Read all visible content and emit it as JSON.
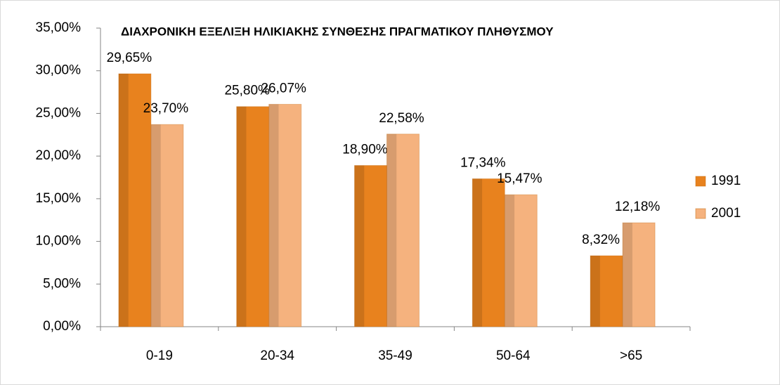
{
  "chart_data": {
    "type": "bar",
    "title": "ΔΙΑΧΡΟΝΙΚΗ ΕΞΕΛΙΞΗ ΗΛΙΚΙΑΚΗΣ ΣΥΝΘΕΣΗΣ ΠΡΑΓΜΑΤΙΚΟΥ ΠΛΗΘΥΣΜΟΥ",
    "categories": [
      "0-19",
      "20-34",
      "35-49",
      "50-64",
      ">65"
    ],
    "series": [
      {
        "name": "1991",
        "color": "#e8821e",
        "values": [
          29.65,
          25.8,
          18.9,
          17.34,
          8.32
        ],
        "value_labels": [
          "29,65%",
          "25,80%",
          "18,90%",
          "17,34%",
          "8,32%"
        ]
      },
      {
        "name": "2001",
        "color": "#f5b27e",
        "values": [
          23.7,
          26.07,
          22.58,
          15.47,
          12.18
        ],
        "value_labels": [
          "23,70%",
          "26,07%",
          "22,58%",
          "15,47%",
          "12,18%"
        ]
      }
    ],
    "ylim": [
      0,
      35
    ],
    "yticks": [
      {
        "value": 0,
        "label": "0,00%"
      },
      {
        "value": 5,
        "label": "5,00%"
      },
      {
        "value": 10,
        "label": "10,00%"
      },
      {
        "value": 15,
        "label": "15,00%"
      },
      {
        "value": 20,
        "label": "20,00%"
      },
      {
        "value": 25,
        "label": "25,00%"
      },
      {
        "value": 30,
        "label": "30,00%"
      },
      {
        "value": 35,
        "label": "35,00%"
      }
    ],
    "legend": "right"
  }
}
